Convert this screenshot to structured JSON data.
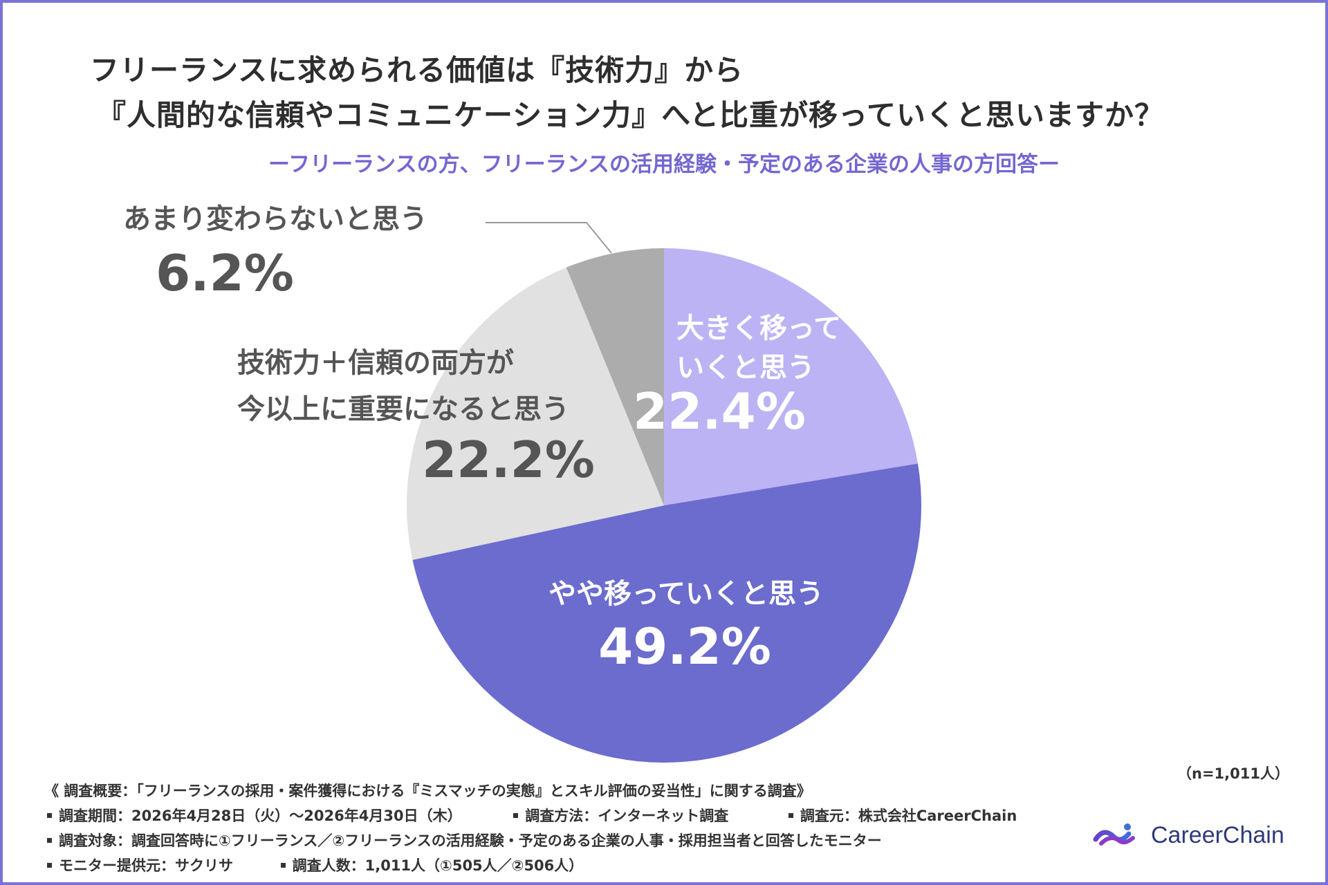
{
  "title": {
    "line1": "フリーランスに求められる価値は『技術力』から",
    "line2": "『人間的な信頼やコミュニケーション力』へと比重が移っていくと思いますか？"
  },
  "subtitle": "ーフリーランスの方、フリーランスの活用経験・予定のある企業の人事の方回答ー",
  "chart_data": {
    "type": "pie",
    "start_angle": "12 o'clock",
    "direction": "clockwise",
    "slices": [
      {
        "label_lines": [
          "大きく移って",
          "いくと思う"
        ],
        "value": 22.4,
        "value_label": "22.4%",
        "color": "#bcb3f5",
        "text_color": "#ffffff"
      },
      {
        "label_lines": [
          "やや移っていくと思う"
        ],
        "value": 49.2,
        "value_label": "49.2%",
        "color": "#6b6ccd",
        "text_color": "#ffffff"
      },
      {
        "label_lines": [
          "技術力＋信頼の両方が",
          "今以上に重要になると思う"
        ],
        "value": 22.2,
        "value_label": "22.2%",
        "color": "#e1e1e1",
        "text_color": "#555555"
      },
      {
        "label_lines": [
          "あまり変わらないと思う"
        ],
        "value": 6.2,
        "value_label": "6.2%",
        "color": "#acacac",
        "text_color": "#555555"
      }
    ]
  },
  "sample_size": "（n=1,011人）",
  "footer": {
    "overview": "《 調査概要：「フリーランスの採用・案件獲得における『ミスマッチの実態』とスキル評価の妥当性」に関する調査》",
    "period": "調査期間：2026年4月28日（火）〜2026年4月30日（木）",
    "method": "調査方法：インターネット調査",
    "source": "調査元：株式会社CareerChain",
    "target": "調査対象：調査回答時に①フリーランス／②フリーランスの活用経験・予定のある企業の人事・採用担当者と回答したモニター",
    "provider": "モニター提供元：サクリサ",
    "count": "調査人数：1,011人（①505人／②506人）"
  },
  "brand": {
    "name": "CareerChain",
    "icon": "career-chain-logo-icon",
    "color": "#2f3a7a"
  },
  "colors": {
    "border": "#7b72d6",
    "subtitle": "#7467d1",
    "leader_line": "#9a9a9a"
  }
}
